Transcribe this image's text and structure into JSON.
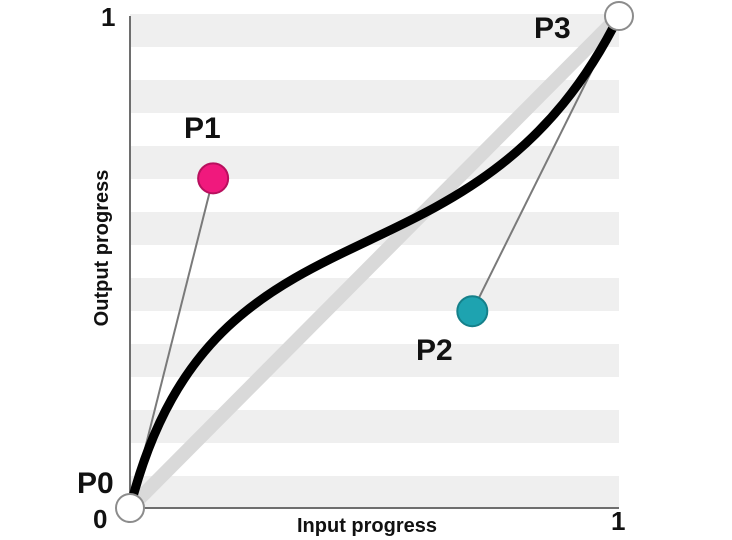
{
  "diagram": {
    "axes": {
      "x_label": "Input progress",
      "y_label": "Output progress",
      "x_min_label": "0",
      "x_max_label": "1",
      "y_max_label": "1"
    },
    "points": [
      {
        "id": "p0",
        "label": "P0",
        "x": 0.0,
        "y": 0.0,
        "color": "#ffffff"
      },
      {
        "id": "p1",
        "label": "P1",
        "x": 0.17,
        "y": 0.67,
        "color": "#f0197d"
      },
      {
        "id": "p2",
        "label": "P2",
        "x": 0.7,
        "y": 0.4,
        "color": "#1ea3b0"
      },
      {
        "id": "p3",
        "label": "P3",
        "x": 1.0,
        "y": 1.0,
        "color": "#ffffff"
      }
    ],
    "colors": {
      "curve": "#000000",
      "handle": "#7a7a7a",
      "diagonal": "#d9d9d9",
      "stripe": "#efefef",
      "axis": "#6e6e6e"
    }
  }
}
